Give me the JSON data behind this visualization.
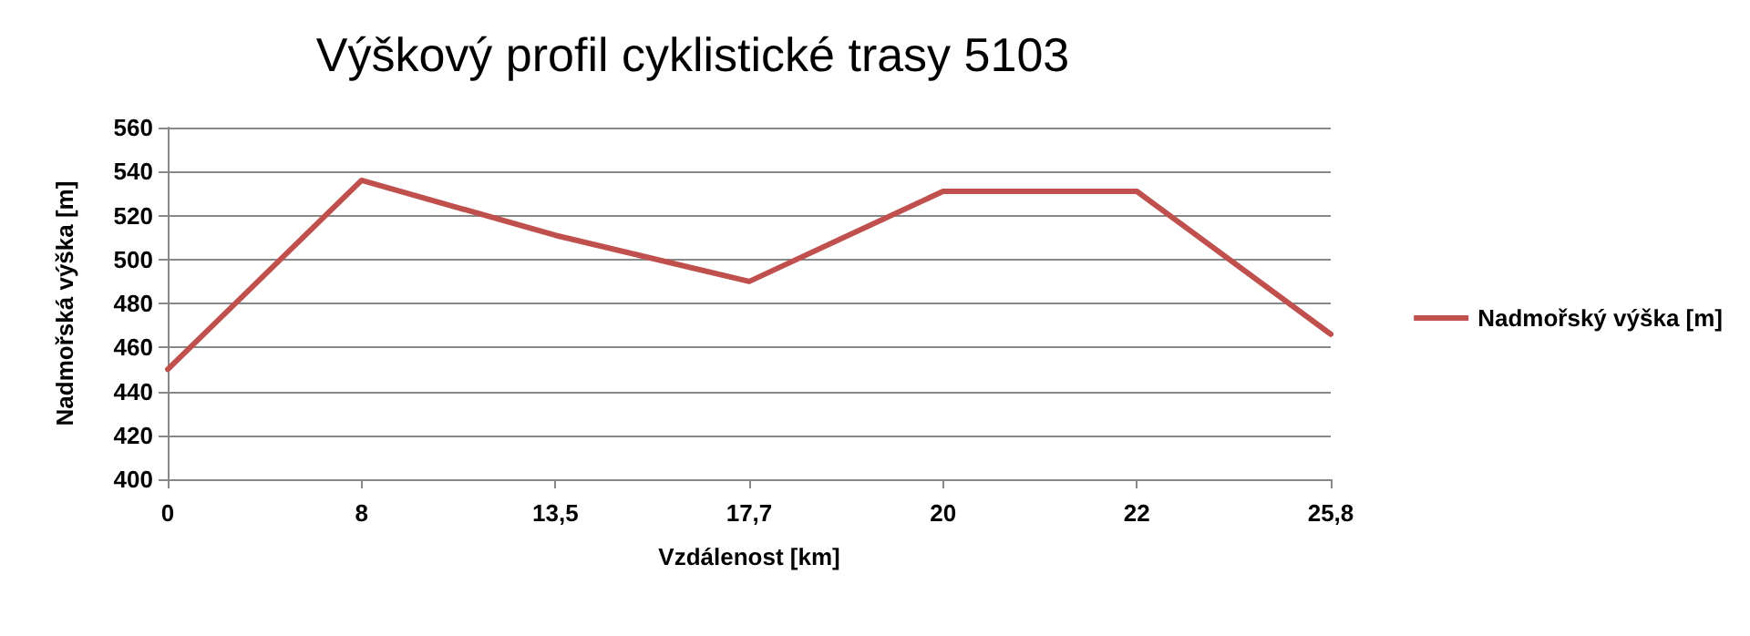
{
  "chart_data": {
    "type": "line",
    "title": "Výškový profil cyklistické trasy 5103",
    "xlabel": "Vzdálenost [km]",
    "ylabel": "Nadmořská výška [m]",
    "categories": [
      "0",
      "8",
      "13,5",
      "17,7",
      "20",
      "22",
      "25,8"
    ],
    "series": [
      {
        "name": "Nadmořský výška [m]",
        "color": "#c0504d",
        "values": [
          450,
          536,
          511,
          490,
          531,
          531,
          466
        ]
      }
    ],
    "ylim": [
      400,
      560
    ],
    "yticks": [
      400,
      420,
      440,
      460,
      480,
      500,
      520,
      540,
      560
    ],
    "grid": "y",
    "legend": "right",
    "marker": "none",
    "line_style": "solid"
  }
}
